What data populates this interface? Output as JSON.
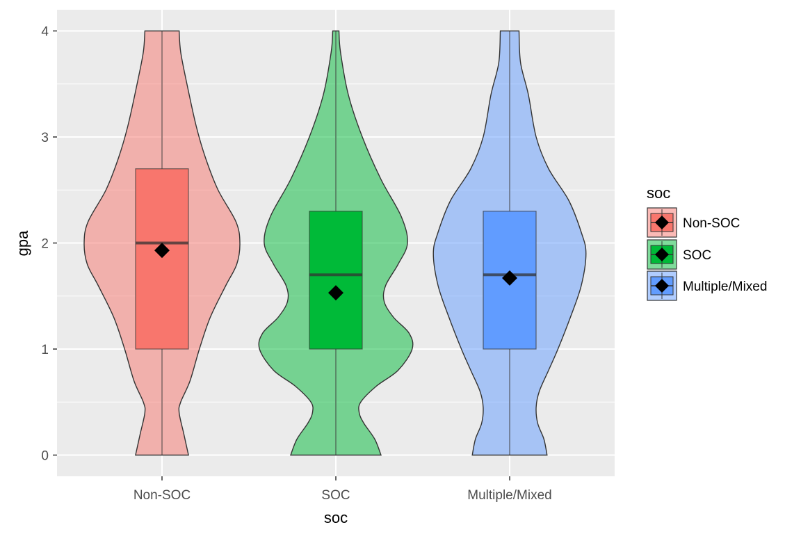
{
  "chart_data": {
    "type": "violin",
    "xlabel": "soc",
    "ylabel": "gpa",
    "ylim": [
      -0.2,
      4.2
    ],
    "yticks": [
      0,
      1,
      2,
      3,
      4
    ],
    "grid": true,
    "legend": {
      "title": "soc",
      "position": "right",
      "entries": [
        "Non-SOC",
        "SOC",
        "Multiple/Mixed"
      ]
    },
    "categories": [
      "Non-SOC",
      "SOC",
      "Multiple/Mixed"
    ],
    "colors": [
      "#F8766D",
      "#00BA38",
      "#619CFF"
    ],
    "series": [
      {
        "name": "Non-SOC",
        "box": {
          "q1": 1.0,
          "median": 2.0,
          "q3": 2.7
        },
        "whisker": [
          0,
          4
        ],
        "mean": 1.93,
        "density": [
          [
            0.0,
            0.34
          ],
          [
            0.2,
            0.28
          ],
          [
            0.4,
            0.22
          ],
          [
            0.5,
            0.24
          ],
          [
            0.7,
            0.36
          ],
          [
            1.0,
            0.48
          ],
          [
            1.3,
            0.62
          ],
          [
            1.6,
            0.82
          ],
          [
            1.8,
            0.96
          ],
          [
            2.0,
            1.0
          ],
          [
            2.2,
            0.95
          ],
          [
            2.5,
            0.72
          ],
          [
            2.8,
            0.56
          ],
          [
            3.1,
            0.44
          ],
          [
            3.5,
            0.32
          ],
          [
            3.8,
            0.24
          ],
          [
            4.0,
            0.22
          ]
        ]
      },
      {
        "name": "SOC",
        "box": {
          "q1": 1.0,
          "median": 1.7,
          "q3": 2.3
        },
        "whisker": [
          0,
          4
        ],
        "mean": 1.53,
        "density": [
          [
            0.0,
            0.58
          ],
          [
            0.15,
            0.5
          ],
          [
            0.3,
            0.36
          ],
          [
            0.4,
            0.3
          ],
          [
            0.5,
            0.32
          ],
          [
            0.65,
            0.52
          ],
          [
            0.8,
            0.8
          ],
          [
            1.0,
            0.98
          ],
          [
            1.15,
            0.94
          ],
          [
            1.3,
            0.74
          ],
          [
            1.45,
            0.62
          ],
          [
            1.6,
            0.64
          ],
          [
            1.8,
            0.8
          ],
          [
            2.0,
            0.92
          ],
          [
            2.25,
            0.84
          ],
          [
            2.6,
            0.58
          ],
          [
            3.0,
            0.34
          ],
          [
            3.4,
            0.16
          ],
          [
            3.8,
            0.06
          ],
          [
            4.0,
            0.04
          ]
        ]
      },
      {
        "name": "Multiple/Mixed",
        "box": {
          "q1": 1.0,
          "median": 1.7,
          "q3": 2.3
        },
        "whisker": [
          0,
          4
        ],
        "mean": 1.67,
        "density": [
          [
            0.0,
            0.48
          ],
          [
            0.15,
            0.44
          ],
          [
            0.3,
            0.36
          ],
          [
            0.45,
            0.34
          ],
          [
            0.6,
            0.38
          ],
          [
            0.8,
            0.5
          ],
          [
            1.0,
            0.62
          ],
          [
            1.3,
            0.78
          ],
          [
            1.6,
            0.92
          ],
          [
            1.9,
            0.98
          ],
          [
            2.1,
            0.92
          ],
          [
            2.4,
            0.76
          ],
          [
            2.7,
            0.5
          ],
          [
            3.0,
            0.34
          ],
          [
            3.4,
            0.24
          ],
          [
            3.7,
            0.14
          ],
          [
            4.0,
            0.12
          ]
        ]
      }
    ]
  }
}
